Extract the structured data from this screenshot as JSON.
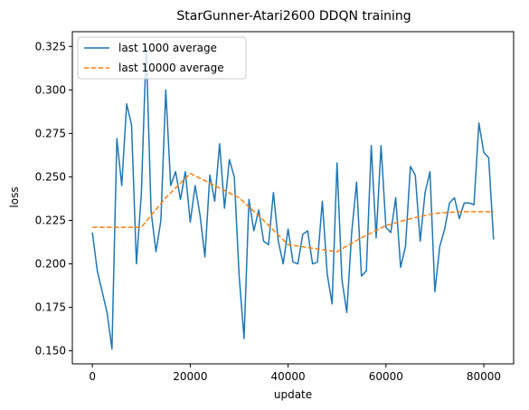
{
  "chart_data": {
    "type": "line",
    "title": "StarGunner-Atari2600 DDQN training",
    "xlabel": "update",
    "ylabel": "loss",
    "xlim": [
      -4100,
      86100
    ],
    "ylim": [
      0.1425,
      0.3335
    ],
    "xticks": [
      0,
      20000,
      40000,
      60000,
      80000
    ],
    "xtick_labels": [
      "0",
      "20000",
      "40000",
      "60000",
      "80000"
    ],
    "yticks": [
      0.15,
      0.175,
      0.2,
      0.225,
      0.25,
      0.275,
      0.3,
      0.325
    ],
    "ytick_labels": [
      "0.150",
      "0.175",
      "0.200",
      "0.225",
      "0.250",
      "0.275",
      "0.300",
      "0.325"
    ],
    "grid": false,
    "legend_position": "upper-left",
    "series": [
      {
        "name": "last 1000 average",
        "color": "#1f77b4",
        "style": "solid",
        "x": [
          0,
          1000,
          2000,
          3000,
          4000,
          5000,
          6000,
          7000,
          8000,
          9000,
          10000,
          11000,
          12000,
          13000,
          14000,
          15000,
          16000,
          17000,
          18000,
          19000,
          20000,
          21000,
          22000,
          23000,
          24000,
          25000,
          26000,
          27000,
          28000,
          29000,
          30000,
          31000,
          32000,
          33000,
          34000,
          35000,
          36000,
          37000,
          38000,
          39000,
          40000,
          41000,
          42000,
          43000,
          44000,
          45000,
          46000,
          47000,
          48000,
          49000,
          50000,
          51000,
          52000,
          53000,
          54000,
          55000,
          56000,
          57000,
          58000,
          59000,
          60000,
          61000,
          62000,
          63000,
          64000,
          65000,
          66000,
          67000,
          68000,
          69000,
          70000,
          71000,
          72000,
          73000,
          74000,
          75000,
          76000,
          77000,
          78000,
          79000,
          80000,
          81000,
          82000
        ],
        "y": [
          0.218,
          0.196,
          0.184,
          0.172,
          0.151,
          0.272,
          0.245,
          0.292,
          0.28,
          0.2,
          0.24,
          0.325,
          0.23,
          0.207,
          0.225,
          0.3,
          0.245,
          0.253,
          0.237,
          0.253,
          0.224,
          0.245,
          0.228,
          0.204,
          0.251,
          0.236,
          0.269,
          0.232,
          0.26,
          0.25,
          0.193,
          0.157,
          0.237,
          0.219,
          0.231,
          0.213,
          0.211,
          0.241,
          0.213,
          0.2,
          0.22,
          0.201,
          0.2,
          0.217,
          0.219,
          0.2,
          0.201,
          0.236,
          0.194,
          0.177,
          0.258,
          0.191,
          0.172,
          0.218,
          0.247,
          0.193,
          0.196,
          0.268,
          0.215,
          0.268,
          0.221,
          0.218,
          0.238,
          0.198,
          0.21,
          0.256,
          0.251,
          0.213,
          0.241,
          0.253,
          0.184,
          0.21,
          0.22,
          0.235,
          0.238,
          0.226,
          0.235,
          0.235,
          0.234,
          0.281,
          0.264,
          0.261,
          0.214
        ]
      },
      {
        "name": "last 10000 average",
        "color": "#ff7f0e",
        "style": "dashed",
        "x": [
          0,
          5000,
          10000,
          15000,
          20000,
          25000,
          30000,
          35000,
          40000,
          45000,
          50000,
          55000,
          60000,
          65000,
          70000,
          75000,
          80000,
          82000
        ],
        "y": [
          0.221,
          0.221,
          0.221,
          0.238,
          0.252,
          0.245,
          0.238,
          0.225,
          0.211,
          0.209,
          0.207,
          0.215,
          0.222,
          0.226,
          0.229,
          0.23,
          0.23,
          0.23
        ]
      }
    ]
  }
}
